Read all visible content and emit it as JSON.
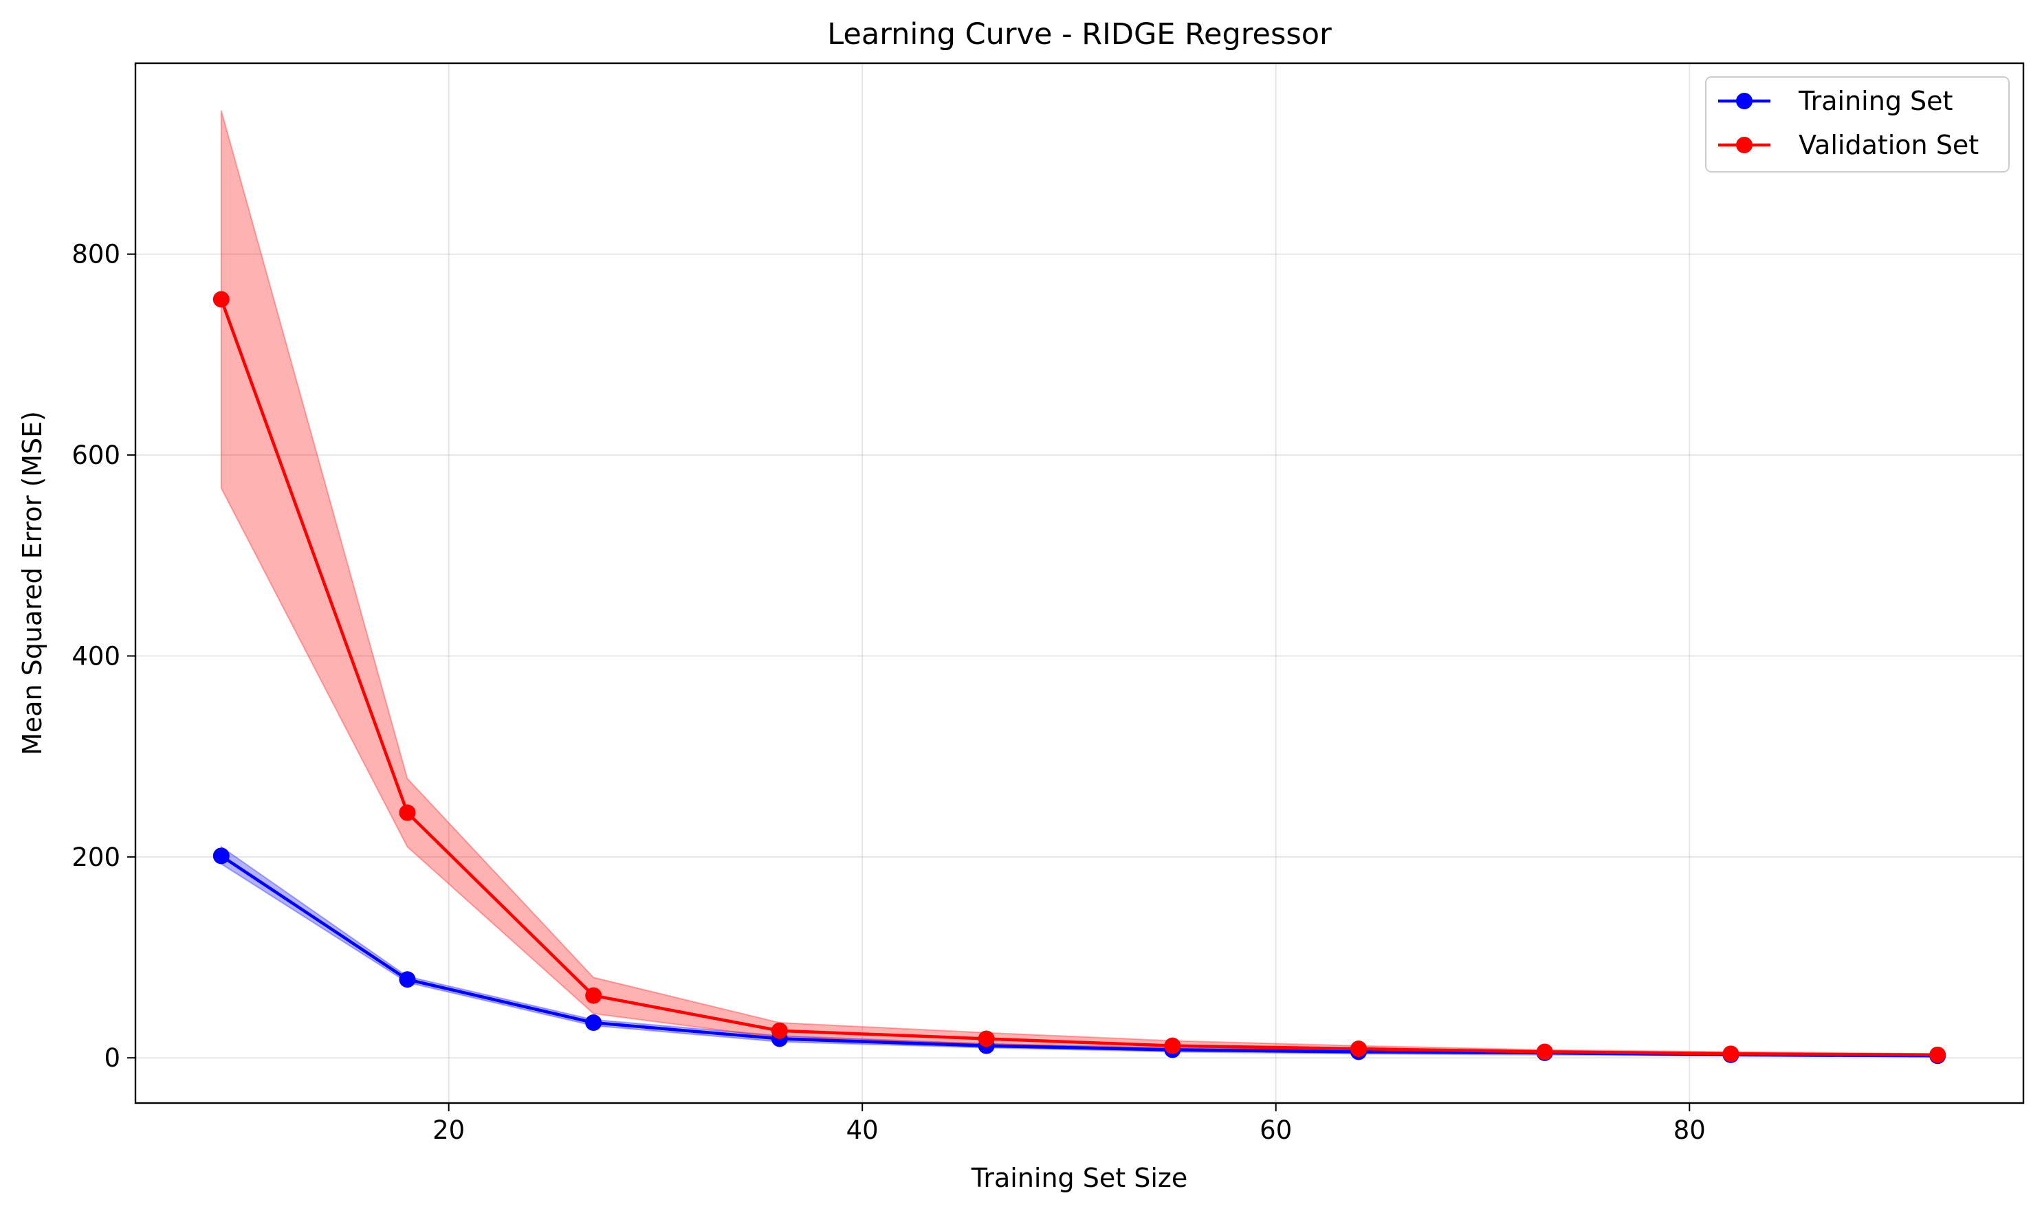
{
  "chart_data": {
    "type": "line",
    "title": "Learning Curve - RIDGE Regressor",
    "xlabel": "Training Set Size",
    "ylabel": "Mean Squared Error (MSE)",
    "xlim": [
      4.85,
      96.15
    ],
    "ylim": [
      -45,
      990
    ],
    "xticks": [
      20,
      40,
      60,
      80
    ],
    "yticks": [
      0,
      200,
      400,
      600,
      800
    ],
    "grid": true,
    "legend_position": "top-right",
    "x": [
      9,
      18,
      27,
      36,
      46,
      55,
      64,
      73,
      82,
      92
    ],
    "series": [
      {
        "name": "Training Set",
        "color": "#0000ff",
        "marker": "circle",
        "values": [
          201,
          78,
          35,
          19,
          12,
          8,
          6,
          5,
          3,
          2
        ],
        "band_lower": [
          193,
          75,
          32,
          16,
          10,
          6,
          4,
          3,
          2,
          1
        ],
        "band_upper": [
          210,
          81,
          38,
          22,
          14,
          10,
          8,
          7,
          5,
          3
        ],
        "band_color": "#0000ff",
        "band_opacity": 0.3
      },
      {
        "name": "Validation Set",
        "color": "#ff0000",
        "marker": "circle",
        "values": [
          755,
          244,
          62,
          27,
          19,
          12,
          9,
          6,
          4,
          3
        ],
        "band_lower": [
          567,
          210,
          44,
          20,
          14,
          8,
          6,
          4,
          3,
          2
        ],
        "band_upper": [
          943,
          278,
          80,
          35,
          25,
          17,
          12,
          8,
          6,
          4
        ],
        "band_color": "#ff0000",
        "band_opacity": 0.3
      }
    ]
  }
}
